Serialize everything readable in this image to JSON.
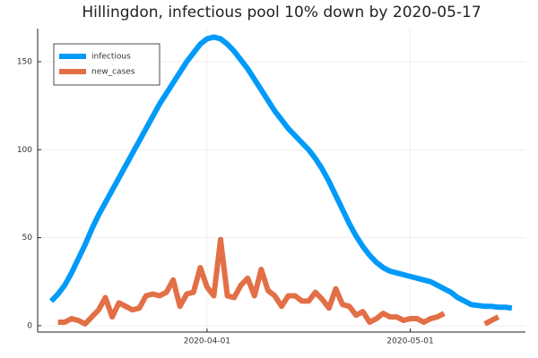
{
  "chart_data": {
    "type": "line",
    "title": "Hillingdon, infectious pool 10% down by 2020-05-17",
    "x": [
      "2020-03-09",
      "2020-03-10",
      "2020-03-11",
      "2020-03-12",
      "2020-03-13",
      "2020-03-14",
      "2020-03-15",
      "2020-03-16",
      "2020-03-17",
      "2020-03-18",
      "2020-03-19",
      "2020-03-20",
      "2020-03-21",
      "2020-03-22",
      "2020-03-23",
      "2020-03-24",
      "2020-03-25",
      "2020-03-26",
      "2020-03-27",
      "2020-03-28",
      "2020-03-29",
      "2020-03-30",
      "2020-03-31",
      "2020-04-01",
      "2020-04-02",
      "2020-04-03",
      "2020-04-04",
      "2020-04-05",
      "2020-04-06",
      "2020-04-07",
      "2020-04-08",
      "2020-04-09",
      "2020-04-10",
      "2020-04-11",
      "2020-04-12",
      "2020-04-13",
      "2020-04-14",
      "2020-04-15",
      "2020-04-16",
      "2020-04-17",
      "2020-04-18",
      "2020-04-19",
      "2020-04-20",
      "2020-04-21",
      "2020-04-22",
      "2020-04-23",
      "2020-04-24",
      "2020-04-25",
      "2020-04-26",
      "2020-04-27",
      "2020-04-28",
      "2020-04-29",
      "2020-04-30",
      "2020-05-01",
      "2020-05-02",
      "2020-05-03",
      "2020-05-04",
      "2020-05-05",
      "2020-05-06",
      "2020-05-07",
      "2020-05-08",
      "2020-05-09",
      "2020-05-10",
      "2020-05-11",
      "2020-05-12",
      "2020-05-13",
      "2020-05-14",
      "2020-05-15",
      "2020-05-16"
    ],
    "series": [
      {
        "name": "infectious",
        "color": "#009af9",
        "values": [
          14,
          18,
          23,
          30,
          38,
          46,
          55,
          63,
          70,
          77,
          84,
          91,
          98,
          105,
          112,
          119,
          126,
          132,
          138,
          144,
          150,
          155,
          160,
          163,
          164,
          163,
          160,
          156,
          151,
          146,
          140,
          134,
          128,
          122,
          117,
          112,
          108,
          104,
          100,
          95,
          89,
          82,
          74,
          66,
          58,
          51,
          45,
          40,
          36,
          33,
          31,
          30,
          29,
          28,
          27,
          26,
          25,
          23,
          21,
          19,
          16,
          14,
          12,
          11.5,
          11,
          11,
          10.5,
          10.5,
          10
        ]
      },
      {
        "name": "new_cases",
        "color": "#e26f46",
        "values": [
          null,
          2,
          2,
          4,
          3,
          1,
          5,
          9,
          16,
          5,
          13,
          11,
          9,
          10,
          17,
          18,
          17,
          19,
          26,
          11,
          18,
          19,
          33,
          22,
          17,
          49,
          17,
          16,
          23,
          27,
          17,
          32,
          20,
          17,
          11,
          17,
          17,
          14,
          14,
          19,
          15,
          10,
          21,
          12,
          11,
          6,
          8,
          2,
          4,
          7,
          5,
          5,
          3,
          4,
          4,
          2,
          4,
          5,
          7,
          null,
          null,
          null,
          null,
          null,
          1,
          3,
          5,
          null,
          3
        ]
      }
    ],
    "xlim": [
      "2020-03-07",
      "2020-05-18"
    ],
    "xticks": [
      "2020-04-01",
      "2020-05-01"
    ],
    "ylim": [
      -3.6,
      168.8
    ],
    "yticks": [
      0,
      50,
      100,
      150
    ],
    "grid": true,
    "legend": "top-left"
  }
}
